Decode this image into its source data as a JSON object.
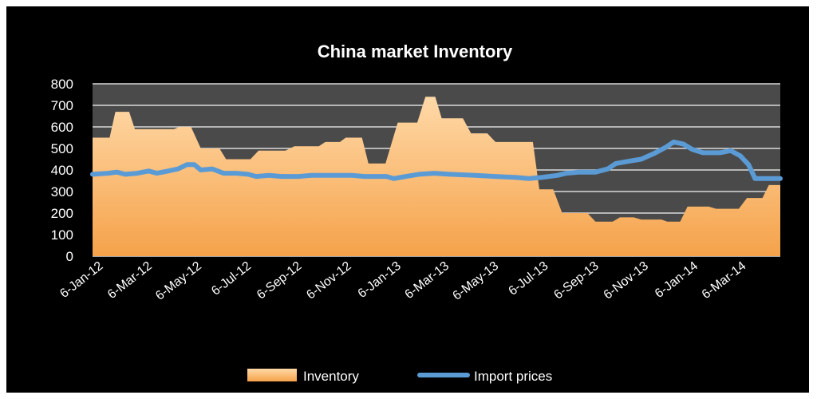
{
  "chart_data": {
    "type": "area+line",
    "title": "China market Inventory",
    "xlabel": "",
    "ylabel": "",
    "ylim": [
      0,
      800
    ],
    "yticks": [
      0,
      100,
      200,
      300,
      400,
      500,
      600,
      700,
      800
    ],
    "grid": true,
    "legend_position": "bottom",
    "x_tick_labels": [
      "6-Jan-12",
      "6-Mar-12",
      "6-May-12",
      "6-Jul-12",
      "6-Sep-12",
      "6-Nov-12",
      "6-Jan-13",
      "6-Mar-13",
      "6-May-13",
      "6-Jul-13",
      "6-Sep-13",
      "6-Nov-13",
      "6-Jan-14",
      "6-Mar-14"
    ],
    "x_range": [
      "2012-01-06",
      "2014-04-30"
    ],
    "colors": {
      "inventory": "#f5a24a",
      "inventory_light": "#ffd9a8",
      "import_prices": "#5b9bd5",
      "grid": "#d9d9d9",
      "plot_bg": "#4a4a4a"
    },
    "series": [
      {
        "name": "Inventory",
        "kind": "area",
        "points": [
          [
            "2012-01-06",
            550
          ],
          [
            "2012-01-27",
            550
          ],
          [
            "2012-02-03",
            670
          ],
          [
            "2012-02-20",
            670
          ],
          [
            "2012-02-27",
            590
          ],
          [
            "2012-04-15",
            590
          ],
          [
            "2012-04-22",
            600
          ],
          [
            "2012-05-06",
            600
          ],
          [
            "2012-05-18",
            500
          ],
          [
            "2012-06-10",
            500
          ],
          [
            "2012-06-18",
            450
          ],
          [
            "2012-07-18",
            450
          ],
          [
            "2012-07-28",
            490
          ],
          [
            "2012-08-30",
            490
          ],
          [
            "2012-09-10",
            510
          ],
          [
            "2012-10-10",
            510
          ],
          [
            "2012-10-18",
            530
          ],
          [
            "2012-11-05",
            530
          ],
          [
            "2012-11-12",
            550
          ],
          [
            "2012-12-02",
            550
          ],
          [
            "2012-12-10",
            430
          ],
          [
            "2012-12-31",
            430
          ],
          [
            "2013-01-15",
            620
          ],
          [
            "2013-02-08",
            620
          ],
          [
            "2013-02-18",
            740
          ],
          [
            "2013-03-02",
            740
          ],
          [
            "2013-03-10",
            640
          ],
          [
            "2013-04-05",
            640
          ],
          [
            "2013-04-15",
            570
          ],
          [
            "2013-05-05",
            570
          ],
          [
            "2013-05-15",
            530
          ],
          [
            "2013-06-30",
            530
          ],
          [
            "2013-07-08",
            310
          ],
          [
            "2013-07-25",
            310
          ],
          [
            "2013-08-05",
            200
          ],
          [
            "2013-09-05",
            200
          ],
          [
            "2013-09-15",
            160
          ],
          [
            "2013-10-06",
            160
          ],
          [
            "2013-10-15",
            180
          ],
          [
            "2013-11-01",
            180
          ],
          [
            "2013-11-10",
            170
          ],
          [
            "2013-12-05",
            170
          ],
          [
            "2013-12-12",
            160
          ],
          [
            "2013-12-28",
            160
          ],
          [
            "2014-01-06",
            230
          ],
          [
            "2014-02-01",
            230
          ],
          [
            "2014-02-10",
            220
          ],
          [
            "2014-03-10",
            220
          ],
          [
            "2014-03-20",
            270
          ],
          [
            "2014-04-08",
            270
          ],
          [
            "2014-04-16",
            330
          ],
          [
            "2014-04-30",
            330
          ]
        ]
      },
      {
        "name": "Import prices",
        "kind": "line",
        "points": [
          [
            "2012-01-06",
            380
          ],
          [
            "2012-01-25",
            385
          ],
          [
            "2012-02-05",
            390
          ],
          [
            "2012-02-15",
            380
          ],
          [
            "2012-03-01",
            385
          ],
          [
            "2012-03-15",
            395
          ],
          [
            "2012-03-25",
            385
          ],
          [
            "2012-04-08",
            395
          ],
          [
            "2012-04-20",
            405
          ],
          [
            "2012-05-01",
            425
          ],
          [
            "2012-05-10",
            425
          ],
          [
            "2012-05-18",
            400
          ],
          [
            "2012-06-01",
            405
          ],
          [
            "2012-06-15",
            385
          ],
          [
            "2012-07-01",
            385
          ],
          [
            "2012-07-15",
            380
          ],
          [
            "2012-07-25",
            370
          ],
          [
            "2012-08-10",
            375
          ],
          [
            "2012-08-25",
            370
          ],
          [
            "2012-09-15",
            370
          ],
          [
            "2012-10-01",
            375
          ],
          [
            "2012-11-01",
            375
          ],
          [
            "2012-11-20",
            375
          ],
          [
            "2012-12-05",
            370
          ],
          [
            "2013-01-01",
            370
          ],
          [
            "2013-01-10",
            360
          ],
          [
            "2013-01-25",
            370
          ],
          [
            "2013-02-10",
            380
          ],
          [
            "2013-03-01",
            385
          ],
          [
            "2013-03-20",
            380
          ],
          [
            "2013-04-20",
            375
          ],
          [
            "2013-05-15",
            370
          ],
          [
            "2013-06-10",
            365
          ],
          [
            "2013-06-25",
            360
          ],
          [
            "2013-07-10",
            365
          ],
          [
            "2013-07-30",
            375
          ],
          [
            "2013-08-10",
            385
          ],
          [
            "2013-08-25",
            390
          ],
          [
            "2013-09-15",
            390
          ],
          [
            "2013-09-30",
            405
          ],
          [
            "2013-10-10",
            430
          ],
          [
            "2013-10-25",
            440
          ],
          [
            "2013-11-10",
            450
          ],
          [
            "2013-11-25",
            475
          ],
          [
            "2013-12-10",
            505
          ],
          [
            "2013-12-20",
            530
          ],
          [
            "2014-01-01",
            520
          ],
          [
            "2014-01-12",
            495
          ],
          [
            "2014-01-25",
            480
          ],
          [
            "2014-02-15",
            480
          ],
          [
            "2014-02-28",
            490
          ],
          [
            "2014-03-12",
            465
          ],
          [
            "2014-03-22",
            425
          ],
          [
            "2014-03-30",
            360
          ],
          [
            "2014-04-10",
            360
          ],
          [
            "2014-04-30",
            360
          ]
        ]
      }
    ],
    "legend": [
      {
        "label": "Inventory",
        "swatch": "area"
      },
      {
        "label": "Import prices",
        "swatch": "line"
      }
    ]
  }
}
